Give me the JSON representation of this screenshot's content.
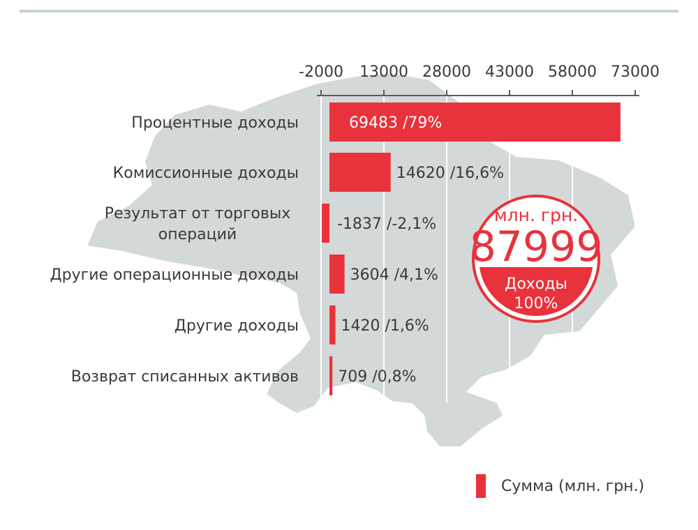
{
  "colors": {
    "bar": "#e8323c",
    "map": "#d3d9d8",
    "axis": "#5a5a5a",
    "text": "#3a3a3a",
    "white": "#ffffff",
    "rule": "#c5d3d1"
  },
  "chart_data": {
    "type": "bar",
    "orientation": "horizontal",
    "categories": [
      [
        "Процентные доходы"
      ],
      [
        "Комиссионные доходы"
      ],
      [
        "Результат от торговых",
        "операций"
      ],
      [
        "Другие операционные доходы"
      ],
      [
        "Другие доходы"
      ],
      [
        "Возврат списанных активов"
      ]
    ],
    "series": [
      {
        "name": "Сумма (млн. грн.)",
        "values": [
          69483,
          14620,
          -1837,
          3604,
          1420,
          709
        ],
        "labels": [
          "69483 /79%",
          "14620 /16,6%",
          "-1837 /-2,1%",
          "3604 /4,1%",
          "1420 /1,6%",
          "709 /0,8%"
        ]
      }
    ],
    "xticks": [
      -2000,
      13000,
      28000,
      43000,
      58000,
      73000
    ],
    "xtick_labels": [
      "-2000",
      "13000",
      "28000",
      "43000",
      "58000",
      "73000"
    ],
    "xlim": [
      -2000,
      73000
    ],
    "axis_position": "top",
    "grid": true,
    "legend": {
      "label": "Сумма (млн. грн.)",
      "placement": "bottom-right"
    }
  },
  "badge": {
    "unit": "млн. грн.",
    "total": "87999",
    "caption": "Доходы",
    "percent": "100%"
  }
}
